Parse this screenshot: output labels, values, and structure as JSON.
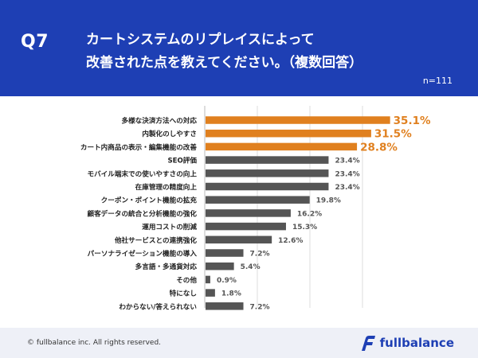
{
  "header": {
    "question_number": "Q7",
    "title_line1": "カートシステムのリプレイスによって",
    "title_line2": "改善された点を教えてください。（複数回答）",
    "sample_size": "n=111"
  },
  "footer": {
    "copyright": "© fullbalance inc. All rights reserved.",
    "logo_text": "fullbalance"
  },
  "colors": {
    "header_bg": "#1e3fb4",
    "highlight_bar": "#e0801f",
    "normal_bar": "#555555",
    "highlight_label": "#e0801f",
    "normal_label": "#555555"
  },
  "chart_data": {
    "type": "bar",
    "orientation": "horizontal",
    "unit": "%",
    "xlim": [
      0,
      40
    ],
    "gridlines": [
      0,
      10,
      20,
      30
    ],
    "highlight_top_n": 3,
    "categories": [
      "多様な決済方法への対応",
      "内製化のしやすさ",
      "カート内商品の表示・編集機能の改善",
      "SEO評価",
      "モバイル端末での使いやすさの向上",
      "在庫管理の精度向上",
      "クーポン・ポイント機能の拡充",
      "顧客データの統合と分析機能の強化",
      "運用コストの削減",
      "他社サービスとの連携強化",
      "パーソナライゼーション機能の導入",
      "多言語・多通貨対応",
      "その他",
      "特になし",
      "わからない/答えられない"
    ],
    "values": [
      35.1,
      31.5,
      28.8,
      23.4,
      23.4,
      23.4,
      19.8,
      16.2,
      15.3,
      12.6,
      7.2,
      5.4,
      0.9,
      1.8,
      7.2
    ],
    "value_labels": [
      "35.1%",
      "31.5%",
      "28.8%",
      "23.4%",
      "23.4%",
      "23.4%",
      "19.8%",
      "16.2%",
      "15.3%",
      "12.6%",
      "7.2%",
      "5.4%",
      "0.9%",
      "1.8%",
      "7.2%"
    ]
  }
}
